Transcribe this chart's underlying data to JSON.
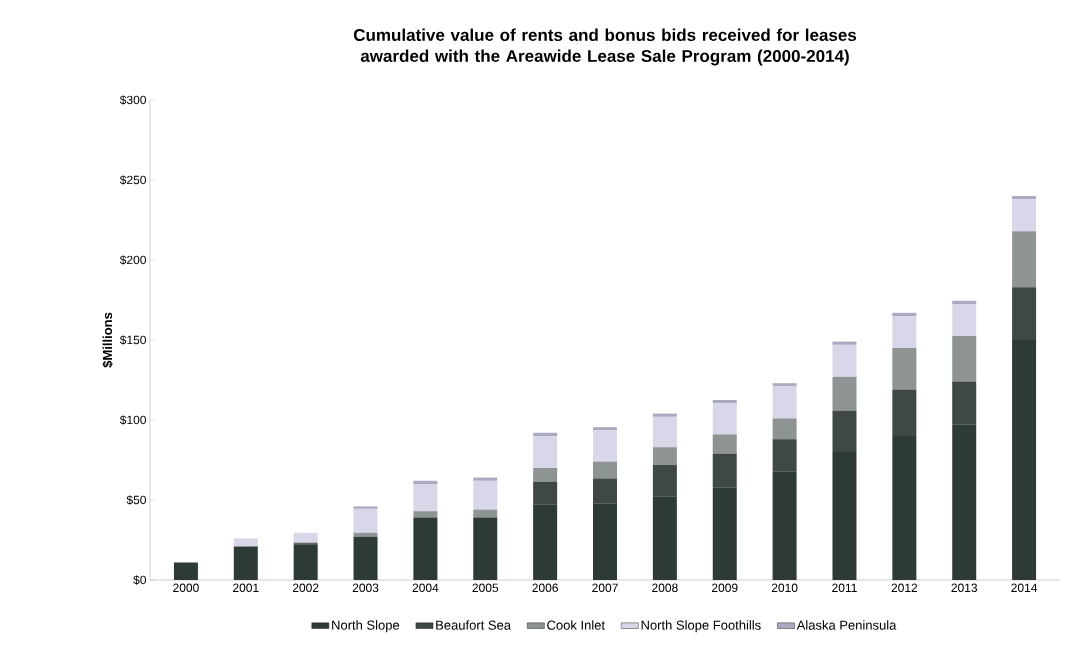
{
  "chart_data": {
    "type": "bar",
    "stacked": true,
    "title": "Cumulative value of rents and bonus bids received for leases awarded with the Areawide Lease Sale Program (2000-2014)",
    "ylabel": "$Millions",
    "categories": [
      "2000",
      "2001",
      "2002",
      "2003",
      "2004",
      "2005",
      "2006",
      "2007",
      "2008",
      "2009",
      "2010",
      "2011",
      "2012",
      "2013",
      "2014"
    ],
    "series": [
      {
        "name": "North Slope",
        "color": "#2e3a36",
        "values": [
          11,
          21,
          22,
          27,
          39,
          39,
          47,
          48,
          52,
          58,
          68,
          80,
          90,
          97,
          150
        ]
      },
      {
        "name": "Beaufort Sea",
        "color": "#3f4847",
        "values": [
          0,
          0,
          1,
          0,
          0,
          0,
          14.5,
          15.5,
          20,
          21,
          20,
          26,
          29,
          27,
          33
        ]
      },
      {
        "name": "Cook Inlet",
        "color": "#8e9494",
        "values": [
          0,
          null,
          0.5,
          2.5,
          4,
          5,
          8.5,
          10.5,
          11,
          12,
          13,
          21,
          26,
          28.5,
          35
        ]
      },
      {
        "name": "North Slope Foothills",
        "color": "#d8d7ea",
        "values": [
          0,
          5,
          6,
          15,
          17,
          18,
          20,
          19.5,
          19,
          19.5,
          20,
          20,
          20,
          20,
          20
        ]
      },
      {
        "name": "Alaska Peninsula",
        "color": "#a9a9bf",
        "values": [
          0,
          null,
          null,
          1.5,
          2,
          2,
          2,
          2,
          2,
          2,
          2,
          2,
          2,
          2,
          2
        ]
      }
    ],
    "ylim": [
      0,
      300
    ],
    "yticks": [
      {
        "value": 0,
        "label": "$0"
      },
      {
        "value": 50,
        "label": "$50"
      },
      {
        "value": 100,
        "label": "$100"
      },
      {
        "value": 150,
        "label": "$150"
      },
      {
        "value": 200,
        "label": "$200"
      },
      {
        "value": 250,
        "label": "$250"
      },
      {
        "value": 300,
        "label": "$300"
      }
    ],
    "legend": "bottom"
  }
}
